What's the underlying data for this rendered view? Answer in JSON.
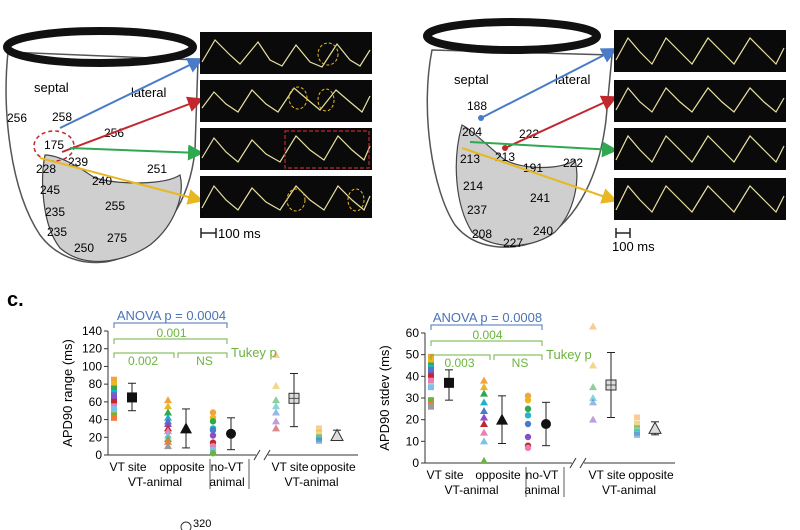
{
  "panel_top_left": {
    "labels": {
      "septal": "septal",
      "lateral": "lateral"
    },
    "apd_values": [
      "256",
      "258",
      "175",
      "256",
      "239",
      "251",
      "228",
      "240",
      "245",
      "235",
      "255",
      "235",
      "275",
      "250"
    ],
    "scale_label": "100 ms"
  },
  "panel_top_right": {
    "labels": {
      "septal": "septal",
      "lateral": "lateral"
    },
    "apd_values": [
      "188",
      "204",
      "222",
      "213",
      "213",
      "222",
      "191",
      "214",
      "241",
      "237",
      "240",
      "208",
      "227"
    ],
    "scale_label": "100 ms"
  },
  "panel_c": {
    "label": "c.",
    "colors": {
      "anova": "#4a73b5",
      "tukey": "#6cb33f",
      "blue_arrow": "#4a7bc8",
      "red_arrow": "#c0282d",
      "green_arrow": "#2fa84f",
      "yellow_arrow": "#e8b823"
    }
  },
  "chart_data": [
    {
      "type": "scatter",
      "ylabel": "APD90 range (ms)",
      "ylim": [
        0,
        140
      ],
      "yticks": [
        "0",
        "20",
        "40",
        "60",
        "80",
        "100",
        "120",
        "140"
      ],
      "x_groups": [
        {
          "tick": "VT site",
          "group": "VT-animal"
        },
        {
          "tick": "opposite",
          "group": "VT-animal"
        },
        {
          "tick": "no-VT",
          "group": "animal"
        },
        {
          "tick": "VT site",
          "group": "VT-animal"
        },
        {
          "tick": "opposite",
          "group": "VT-animal"
        }
      ],
      "x_group_labels": [
        "VT-animal",
        "no-VT",
        "animal",
        "VT-animal"
      ],
      "summary": [
        {
          "group": "VT site",
          "mean": 65,
          "low": 50,
          "high": 81
        },
        {
          "group": "opposite",
          "mean": 30,
          "low": 8,
          "high": 52
        },
        {
          "group": "no-VT",
          "mean": 24,
          "low": 6,
          "high": 42
        },
        {
          "group": "VT site (2nd)",
          "mean": 64,
          "low": 32,
          "high": 92
        },
        {
          "group": "opposite (2nd)",
          "mean": 22,
          "low": 17,
          "high": 28
        }
      ],
      "points": {
        "VT site": [
          85,
          80,
          75,
          70,
          68,
          65,
          60,
          55,
          52,
          45,
          42
        ],
        "opposite": [
          62,
          55,
          48,
          42,
          38,
          35,
          30,
          27,
          22,
          18,
          15,
          10
        ],
        "no-VT": [
          48,
          42,
          38,
          30,
          28,
          22,
          14,
          10,
          6,
          2
        ],
        "VT site (2nd)": [
          113,
          78,
          62,
          55,
          48,
          38,
          30
        ],
        "opposite (2nd)": [
          30,
          25,
          20,
          18,
          16
        ]
      },
      "anova": "ANOVA p = 0.0004",
      "tukey": {
        "label": "Tukey p",
        "comparisons": [
          "0.002",
          "0.001",
          "NS"
        ]
      }
    },
    {
      "type": "scatter",
      "ylabel": "APD90 stdev (ms)",
      "ylim": [
        0,
        60
      ],
      "yticks": [
        "0",
        "10",
        "20",
        "30",
        "40",
        "50",
        "60"
      ],
      "x_groups": [
        {
          "tick": "VT site",
          "group": "VT-animal"
        },
        {
          "tick": "opposite",
          "group": "VT-animal"
        },
        {
          "tick": "no-VT",
          "group": "animal"
        },
        {
          "tick": "VT site",
          "group": "VT-animal"
        },
        {
          "tick": "opposite",
          "group": "VT-animal"
        }
      ],
      "x_group_labels": [
        "VT-animal",
        "no-VT",
        "animal",
        "VT-animal"
      ],
      "summary": [
        {
          "group": "VT site",
          "mean": 37,
          "low": 29,
          "high": 43
        },
        {
          "group": "opposite",
          "mean": 20,
          "low": 9,
          "high": 31
        },
        {
          "group": "no-VT",
          "mean": 18,
          "low": 8,
          "high": 28
        },
        {
          "group": "VT site (2nd)",
          "mean": 36,
          "low": 21,
          "high": 51
        },
        {
          "group": "opposite (2nd)",
          "mean": 16,
          "low": 13,
          "high": 19
        }
      ],
      "points": {
        "VT site": [
          49,
          47,
          45,
          44,
          43,
          41,
          40,
          38,
          35,
          29,
          27,
          26
        ],
        "opposite": [
          38,
          35,
          32,
          28,
          24,
          21,
          18,
          14,
          10,
          1
        ],
        "no-VT": [
          31,
          29,
          25,
          22,
          18,
          12,
          8,
          7
        ],
        "VT site (2nd)": [
          63,
          45,
          35,
          30,
          28,
          20
        ],
        "opposite (2nd)": [
          21,
          18,
          16,
          14,
          13
        ]
      },
      "anova": "ANOVA p = 0.0008",
      "tukey": {
        "label": "Tukey p",
        "comparisons": [
          "0.003",
          "0.004",
          "NS"
        ]
      }
    }
  ],
  "bottom_fragment": {
    "value": "320"
  }
}
